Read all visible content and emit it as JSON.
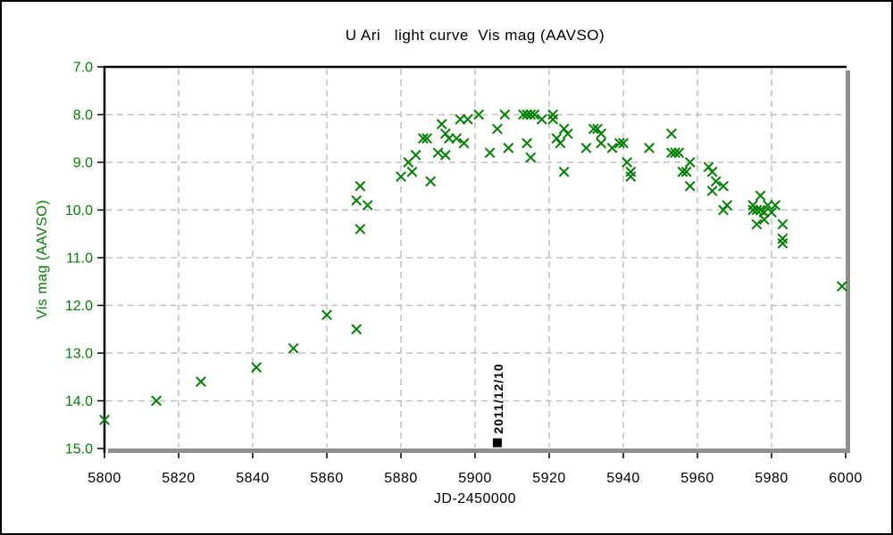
{
  "chart_data": {
    "type": "scatter",
    "title": "U Ari   light curve  Vis mag (AAVSO)",
    "xlabel": "JD-2450000",
    "ylabel": "Vis mag (AAVSO)",
    "xlim": [
      5800,
      6000
    ],
    "ylim": [
      7.0,
      15.0
    ],
    "y_axis_inverted_magnitude": true,
    "grid": true,
    "legend": "none",
    "x_tick_values": [
      5800,
      5820,
      5840,
      5860,
      5880,
      5900,
      5920,
      5940,
      5960,
      5980,
      6000
    ],
    "x_tick_labels": [
      "5800",
      "5820",
      "5840",
      "5860",
      "5880",
      "5900",
      "5920",
      "5940",
      "5960",
      "5980",
      "6000"
    ],
    "y_tick_values": [
      7.0,
      8.0,
      9.0,
      10.0,
      11.0,
      12.0,
      13.0,
      14.0,
      15.0
    ],
    "y_tick_labels": [
      "7.0",
      "8.0",
      "9.0",
      "10.0",
      "11.0",
      "12.0",
      "13.0",
      "14.0",
      "15.0"
    ],
    "marker": "x",
    "points": [
      [
        5800,
        14.4
      ],
      [
        5814,
        14.0
      ],
      [
        5826,
        13.6
      ],
      [
        5841,
        13.3
      ],
      [
        5851,
        12.9
      ],
      [
        5860,
        12.2
      ],
      [
        5868,
        12.5
      ],
      [
        5868,
        9.8
      ],
      [
        5869,
        9.5
      ],
      [
        5869,
        10.4
      ],
      [
        5871,
        9.9
      ],
      [
        5880,
        9.3
      ],
      [
        5882,
        9.0
      ],
      [
        5883,
        9.2
      ],
      [
        5884,
        8.85
      ],
      [
        5886,
        8.5
      ],
      [
        5887,
        8.5
      ],
      [
        5888,
        9.4
      ],
      [
        5890,
        8.8
      ],
      [
        5891,
        8.2
      ],
      [
        5892,
        8.4
      ],
      [
        5892,
        8.85
      ],
      [
        5893,
        8.5
      ],
      [
        5895,
        8.5
      ],
      [
        5896,
        8.1
      ],
      [
        5897,
        8.6
      ],
      [
        5898,
        8.1
      ],
      [
        5901,
        8.0
      ],
      [
        5904,
        8.8
      ],
      [
        5906,
        8.3
      ],
      [
        5908,
        8.0
      ],
      [
        5909,
        8.7
      ],
      [
        5913,
        8.0
      ],
      [
        5914,
        8.0
      ],
      [
        5914,
        8.6
      ],
      [
        5915,
        8.0
      ],
      [
        5915,
        8.9
      ],
      [
        5916,
        8.0
      ],
      [
        5918,
        8.1
      ],
      [
        5921,
        8.0
      ],
      [
        5921,
        8.1
      ],
      [
        5922,
        8.5
      ],
      [
        5923,
        8.6
      ],
      [
        5924,
        8.3
      ],
      [
        5924,
        9.2
      ],
      [
        5925,
        8.4
      ],
      [
        5930,
        8.7
      ],
      [
        5932,
        8.3
      ],
      [
        5933,
        8.3
      ],
      [
        5934,
        8.4
      ],
      [
        5934,
        8.6
      ],
      [
        5937,
        8.7
      ],
      [
        5939,
        8.6
      ],
      [
        5940,
        8.6
      ],
      [
        5941,
        9.0
      ],
      [
        5942,
        9.2
      ],
      [
        5942,
        9.3
      ],
      [
        5947,
        8.7
      ],
      [
        5953,
        8.4
      ],
      [
        5953,
        8.8
      ],
      [
        5954,
        8.8
      ],
      [
        5955,
        8.8
      ],
      [
        5956,
        9.2
      ],
      [
        5957,
        9.2
      ],
      [
        5958,
        9.0
      ],
      [
        5958,
        9.5
      ],
      [
        5963,
        9.1
      ],
      [
        5964,
        9.2
      ],
      [
        5964,
        9.6
      ],
      [
        5965,
        9.4
      ],
      [
        5967,
        9.5
      ],
      [
        5967,
        10.0
      ],
      [
        5968,
        9.9
      ],
      [
        5975,
        9.9
      ],
      [
        5975,
        10.0
      ],
      [
        5976,
        10.0
      ],
      [
        5976,
        10.3
      ],
      [
        5977,
        9.7
      ],
      [
        5977,
        10.0
      ],
      [
        5978,
        10.05
      ],
      [
        5978,
        10.2
      ],
      [
        5979,
        9.9
      ],
      [
        5980,
        10.05
      ],
      [
        5981,
        9.9
      ],
      [
        5983,
        10.3
      ],
      [
        5983,
        10.6
      ],
      [
        5983,
        10.7
      ],
      [
        5999,
        11.6
      ]
    ],
    "annotation": {
      "label": "2011/12/10",
      "x": 5906,
      "y": 14.88,
      "marker": "filled-square"
    },
    "colors": {
      "marker": "#008000",
      "y_axis_text": "#008000",
      "x_axis_text": "#000000",
      "gridline": "#c0c0c0",
      "axis_border": "#000000",
      "axis_shadow": "#909090",
      "annotation": "#000000",
      "background": "#ffffff"
    }
  }
}
